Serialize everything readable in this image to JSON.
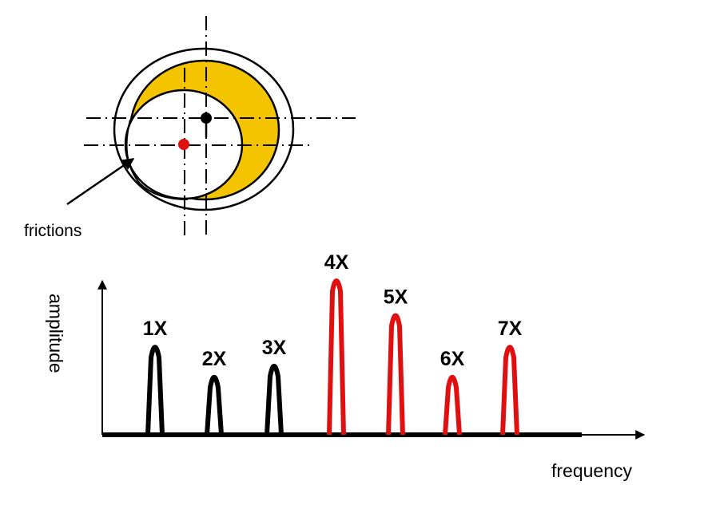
{
  "rotor_diagram": {
    "annotation": "frictions",
    "colors": {
      "rub_zone": "#f5c400",
      "rotor_center": "#e01010",
      "stator_center": "#000000"
    }
  },
  "chart_data": {
    "type": "bar",
    "xlabel": "frequency",
    "ylabel": "amplitude",
    "categories": [
      "1X",
      "2X",
      "3X",
      "4X",
      "5X",
      "6X",
      "7X"
    ],
    "values": [
      0.58,
      0.39,
      0.46,
      1.0,
      0.78,
      0.39,
      0.58
    ],
    "ylim": [
      0,
      1
    ],
    "value_scale": "relative, unlabeled axis",
    "colors": [
      "#000000",
      "#000000",
      "#000000",
      "#e01010",
      "#e01010",
      "#e01010",
      "#e01010"
    ],
    "grid": false
  }
}
